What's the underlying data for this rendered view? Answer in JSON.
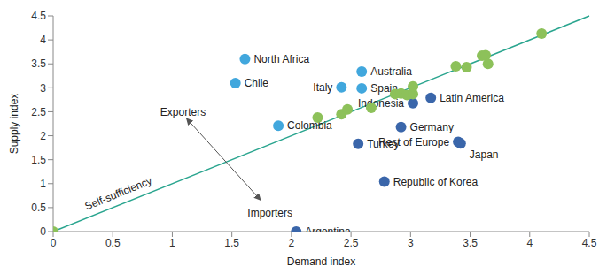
{
  "chart_data": {
    "type": "scatter",
    "x_label": "Demand index",
    "y_label": "Supply index",
    "xlim": [
      0,
      4.5
    ],
    "ylim": [
      0,
      4.5
    ],
    "xticks": [
      0,
      0.5,
      1,
      1.5,
      2,
      2.5,
      3,
      3.5,
      4,
      4.5
    ],
    "yticks": [
      0,
      0.5,
      1,
      1.5,
      2,
      2.5,
      3,
      3.5,
      4,
      4.5
    ],
    "grid": false,
    "reference_line": {
      "label": "Self-sufficiency",
      "x": [
        0,
        4.5
      ],
      "y": [
        0,
        4.5
      ]
    },
    "annotations": [
      "Exporters",
      "Importers"
    ],
    "series": [
      {
        "color": "#41a7dd",
        "x": [
          1.61,
          1.53,
          2.59,
          2.42,
          2.59,
          1.89
        ],
        "y": [
          3.6,
          3.1,
          3.34,
          3.01,
          2.99,
          2.21
        ],
        "labels": [
          "North Africa",
          "Chile",
          "Australia",
          "Italy",
          "Spain",
          "Colombia"
        ]
      },
      {
        "color": "#3a66aa",
        "x": [
          3.02,
          3.17,
          2.92,
          2.56,
          3.4,
          3.42,
          2.78,
          2.04
        ],
        "y": [
          2.68,
          2.79,
          2.18,
          1.83,
          1.87,
          1.84,
          1.04,
          0.0
        ],
        "labels": [
          "Indonesia",
          "Latin America",
          "Germany",
          "Turkey",
          "Rest of Europe",
          "Japan",
          "Republic of Korea",
          "Argentina"
        ]
      },
      {
        "color": "#8dc15a",
        "x": [
          0,
          2.22,
          2.42,
          2.47,
          2.67,
          2.87,
          2.92,
          2.97,
          3.02,
          3.02,
          3.38,
          3.47,
          3.6,
          3.63,
          3.65,
          4.1
        ],
        "y": [
          0,
          2.38,
          2.45,
          2.55,
          2.58,
          2.87,
          2.88,
          2.85,
          2.87,
          3.03,
          3.45,
          3.43,
          3.67,
          3.68,
          3.5,
          4.13
        ],
        "labels": [
          null,
          null,
          null,
          null,
          null,
          null,
          null,
          null,
          null,
          null,
          null,
          null,
          null,
          null,
          null,
          null
        ]
      }
    ]
  }
}
